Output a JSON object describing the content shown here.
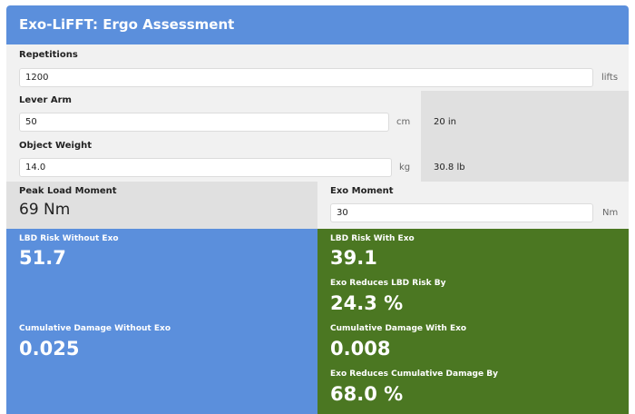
{
  "header": {
    "title": "Exo-LiFFT: Ergo Assessment"
  },
  "repetitions": {
    "label": "Repetitions",
    "value": "1200",
    "unit": "lifts"
  },
  "lever_arm": {
    "label": "Lever Arm",
    "value": "50",
    "unit": "cm",
    "converted": "20 in"
  },
  "object_weight": {
    "label": "Object Weight",
    "value": "14.0",
    "unit": "kg",
    "converted": "30.8 lb"
  },
  "peak_load_moment": {
    "label": "Peak Load Moment",
    "value": "69 Nm"
  },
  "exo_moment": {
    "label": "Exo Moment",
    "value": "30",
    "unit": "Nm"
  },
  "without_exo": {
    "lbd_risk_label": "LBD Risk Without Exo",
    "lbd_risk_value": "51.7",
    "cum_damage_label": "Cumulative Damage Without Exo",
    "cum_damage_value": "0.025"
  },
  "with_exo": {
    "lbd_risk_label": "LBD Risk With Exo",
    "lbd_risk_value": "39.1",
    "reduces_lbd_label": "Exo Reduces LBD Risk By",
    "reduces_lbd_value": "24.3 %",
    "cum_damage_label": "Cumulative Damage With Exo",
    "cum_damage_value": "0.008",
    "reduces_cum_label": "Exo Reduces Cumulative Damage By",
    "reduces_cum_value": "68.0 %"
  },
  "colors": {
    "blue": "#5b8fdc",
    "green": "#4b7722",
    "grey": "#e0e0e0"
  }
}
